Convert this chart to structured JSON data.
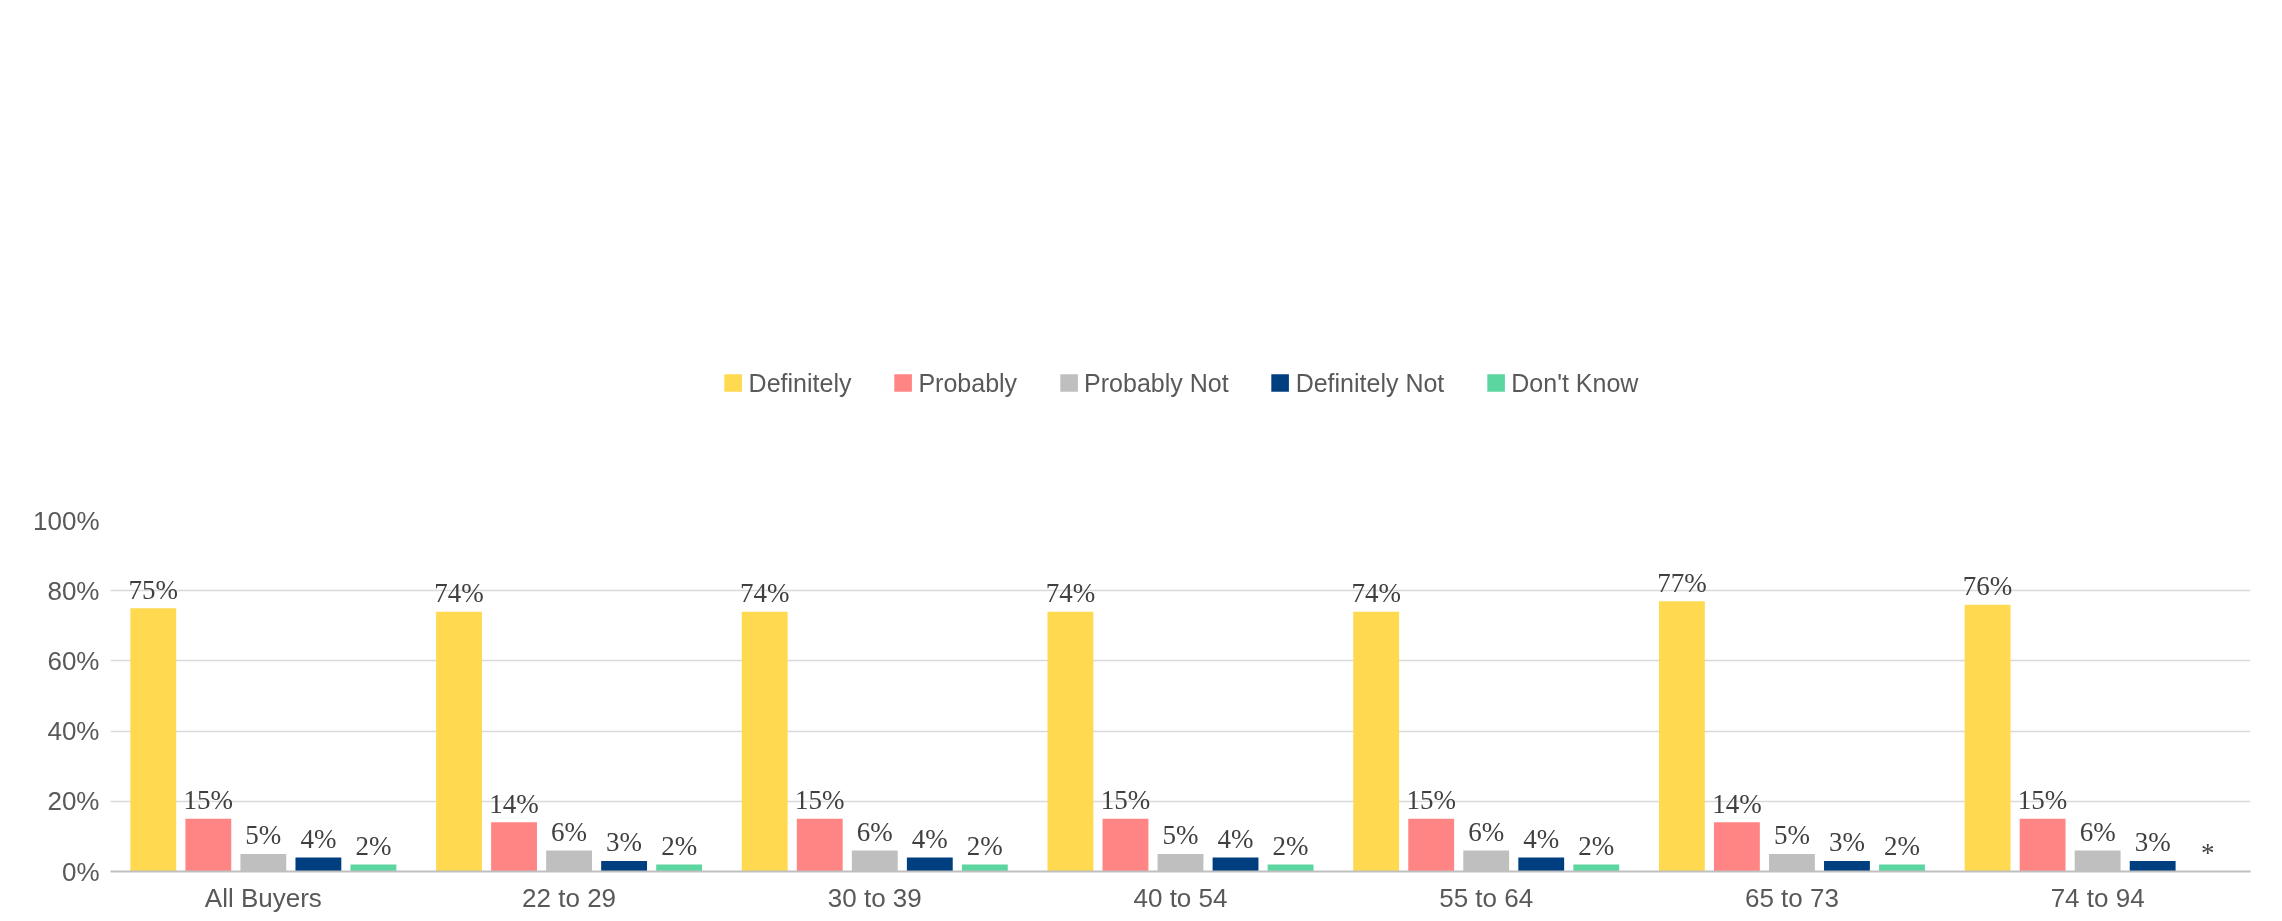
{
  "chart_data": {
    "type": "bar",
    "categories": [
      "All Buyers",
      "22 to 29",
      "30 to 39",
      "40 to 54",
      "55 to 64",
      "65 to 73",
      "74 to 94"
    ],
    "series": [
      {
        "name": "Definitely",
        "color": "#ffd94f",
        "values": [
          75,
          74,
          74,
          74,
          74,
          77,
          76
        ],
        "value_labels": [
          "75%",
          "74%",
          "74%",
          "74%",
          "74%",
          "77%",
          "76%"
        ]
      },
      {
        "name": "Probably",
        "color": "#ff8585",
        "values": [
          15,
          14,
          15,
          15,
          15,
          14,
          15
        ],
        "value_labels": [
          "15%",
          "14%",
          "15%",
          "15%",
          "15%",
          "14%",
          "15%"
        ]
      },
      {
        "name": "Probably Not",
        "color": "#bfbfbf",
        "values": [
          5,
          6,
          6,
          5,
          6,
          5,
          6
        ],
        "value_labels": [
          "5%",
          "6%",
          "6%",
          "5%",
          "6%",
          "5%",
          "6%"
        ]
      },
      {
        "name": "Definitely Not",
        "color": "#003f7f",
        "values": [
          4,
          3,
          4,
          4,
          4,
          3,
          3
        ],
        "value_labels": [
          "4%",
          "3%",
          "4%",
          "4%",
          "4%",
          "3%",
          "3%"
        ]
      },
      {
        "name": "Don't Know",
        "color": "#5cd6a0",
        "values": [
          2,
          2,
          2,
          2,
          2,
          2,
          null
        ],
        "value_labels": [
          "2%",
          "2%",
          "2%",
          "2%",
          "2%",
          "2%",
          "*"
        ]
      }
    ],
    "ylim": [
      0,
      100
    ],
    "yticks": [
      {
        "value": 0,
        "label": "0%"
      },
      {
        "value": 20,
        "label": "20%"
      },
      {
        "value": 40,
        "label": "40%"
      },
      {
        "value": 60,
        "label": "60%"
      },
      {
        "value": 80,
        "label": "80%"
      },
      {
        "value": 100,
        "label": "100%"
      }
    ],
    "grid": "y",
    "legend": "top"
  }
}
